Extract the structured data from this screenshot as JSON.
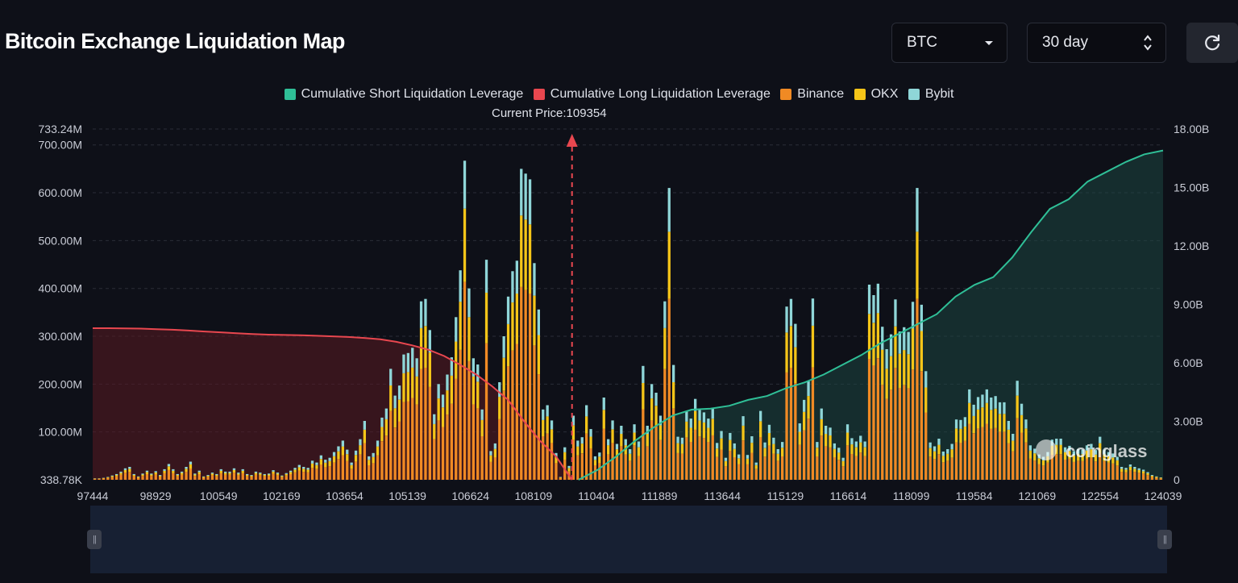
{
  "header": {
    "title": "Bitcoin Exchange Liquidation Map",
    "symbol_select": "BTC",
    "range_select": "30 day"
  },
  "current_price_label": "Current Price:109354",
  "watermark": "coinglass",
  "colors": {
    "short_cum": "#2fbf97",
    "long_cum": "#e8474f",
    "binance": "#f08a24",
    "okx": "#f5c518",
    "bybit": "#8fd6d8"
  },
  "chart_data": {
    "type": "bar",
    "legend": [
      "Cumulative Short Liquidation Leverage",
      "Cumulative Long Liquidation Leverage",
      "Binance",
      "OKX",
      "Bybit"
    ],
    "x_tick_labels": [
      "97444",
      "98929",
      "100549",
      "102169",
      "103654",
      "105139",
      "106624",
      "108109",
      "110404",
      "111889",
      "113644",
      "115129",
      "116614",
      "118099",
      "119584",
      "121069",
      "122554",
      "124039"
    ],
    "y_left_ticks": [
      "338.78K",
      "100.00M",
      "200.00M",
      "300.00M",
      "400.00M",
      "500.00M",
      "600.00M",
      "700.00M",
      "733.24M"
    ],
    "y_right_ticks": [
      "0",
      "3.00B",
      "6.00B",
      "9.00B",
      "12.00B",
      "15.00B",
      "18.00B"
    ],
    "y_left_range": [
      0,
      733.24
    ],
    "y_right_range": [
      0,
      18
    ],
    "x_range": [
      97444,
      124039
    ],
    "current_price": 109354,
    "totals_M": [
      3,
      3,
      4,
      6,
      9,
      12,
      17,
      24,
      27,
      12,
      7,
      13,
      19,
      13,
      18,
      10,
      22,
      33,
      22,
      12,
      17,
      27,
      38,
      13,
      19,
      7,
      10,
      15,
      12,
      22,
      17,
      17,
      24,
      15,
      22,
      12,
      10,
      17,
      15,
      12,
      13,
      20,
      15,
      9,
      14,
      19,
      25,
      31,
      27,
      25,
      40,
      36,
      51,
      42,
      46,
      58,
      70,
      82,
      63,
      36,
      61,
      85,
      123,
      49,
      56,
      82,
      130,
      149,
      232,
      176,
      197,
      262,
      265,
      276,
      254,
      373,
      378,
      313,
      137,
      200,
      178,
      220,
      256,
      340,
      438,
      667,
      400,
      254,
      241,
      147,
      460,
      60,
      76,
      204,
      300,
      383,
      436,
      458,
      650,
      640,
      628,
      453,
      356,
      147,
      156,
      124,
      56,
      6,
      68,
      29,
      134,
      82,
      89,
      156,
      106,
      49,
      57,
      172,
      85,
      124,
      75,
      113,
      85,
      64,
      116,
      80,
      238,
      113,
      200,
      182,
      134,
      373,
      610,
      240,
      90,
      88,
      143,
      128,
      169,
      146,
      141,
      128,
      150,
      77,
      102,
      46,
      98,
      76,
      53,
      133,
      52,
      91,
      36,
      144,
      78,
      115,
      88,
      64,
      79,
      362,
      378,
      326,
      118,
      167,
      206,
      379,
      79,
      149,
      113,
      109,
      76,
      67,
      46,
      116,
      87,
      80,
      92,
      80,
      408,
      386,
      410,
      320,
      273,
      304,
      377,
      310,
      319,
      309,
      372,
      610,
      366,
      227,
      78,
      70,
      86,
      59,
      64,
      75,
      126,
      125,
      131,
      189,
      157,
      173,
      178,
      189,
      172,
      175,
      162,
      162,
      123,
      96,
      207,
      159,
      126,
      72,
      65,
      53,
      48,
      58,
      84,
      86,
      86,
      68,
      71,
      60,
      64,
      63,
      72,
      75,
      62,
      90,
      63,
      58,
      55,
      48,
      27,
      25,
      32,
      27,
      24,
      21,
      16,
      10,
      7,
      5
    ],
    "long_cumulative_B": [
      7.78,
      7.78,
      7.77,
      7.76,
      7.73,
      7.7,
      7.66,
      7.61,
      7.57,
      7.52,
      7.48,
      7.45,
      7.43,
      7.42,
      7.39,
      7.36,
      7.33,
      7.28,
      7.21,
      7.08,
      6.9,
      6.68,
      6.35,
      5.9,
      5.4,
      4.8,
      4.1,
      3.0,
      2.0,
      1.2,
      0.0
    ],
    "short_cumulative_B": [
      0.0,
      0.5,
      1.2,
      2.0,
      2.7,
      3.3,
      3.6,
      3.65,
      3.8,
      4.1,
      4.3,
      4.7,
      5.0,
      5.4,
      5.9,
      6.4,
      7.0,
      7.5,
      8.0,
      8.5,
      9.4,
      10.0,
      10.4,
      11.4,
      12.7,
      13.9,
      14.4,
      15.3,
      15.8,
      16.3,
      16.7,
      16.9
    ]
  }
}
